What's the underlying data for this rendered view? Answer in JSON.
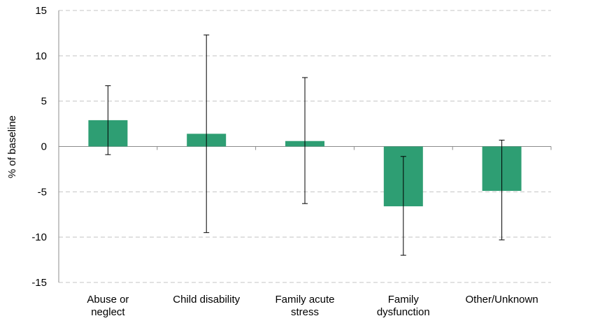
{
  "chart_data": {
    "type": "bar",
    "title": "",
    "xlabel": "",
    "ylabel": "% of baseline",
    "ylim": [
      -15,
      15
    ],
    "yticks": [
      15,
      10,
      5,
      0,
      -5,
      -10,
      -15
    ],
    "grid": true,
    "bar_color": "#2e9e73",
    "categories": [
      [
        "Abuse or",
        "neglect"
      ],
      [
        "Child disability"
      ],
      [
        "Family acute",
        "stress"
      ],
      [
        "Family",
        "dysfunction"
      ],
      [
        "Other/Unknown"
      ]
    ],
    "values": [
      2.9,
      1.4,
      0.6,
      -6.6,
      -4.9
    ],
    "error_low": [
      -0.9,
      -9.5,
      -6.3,
      -12.0,
      -10.3
    ],
    "error_high": [
      6.7,
      12.3,
      7.6,
      -1.1,
      0.7
    ]
  }
}
